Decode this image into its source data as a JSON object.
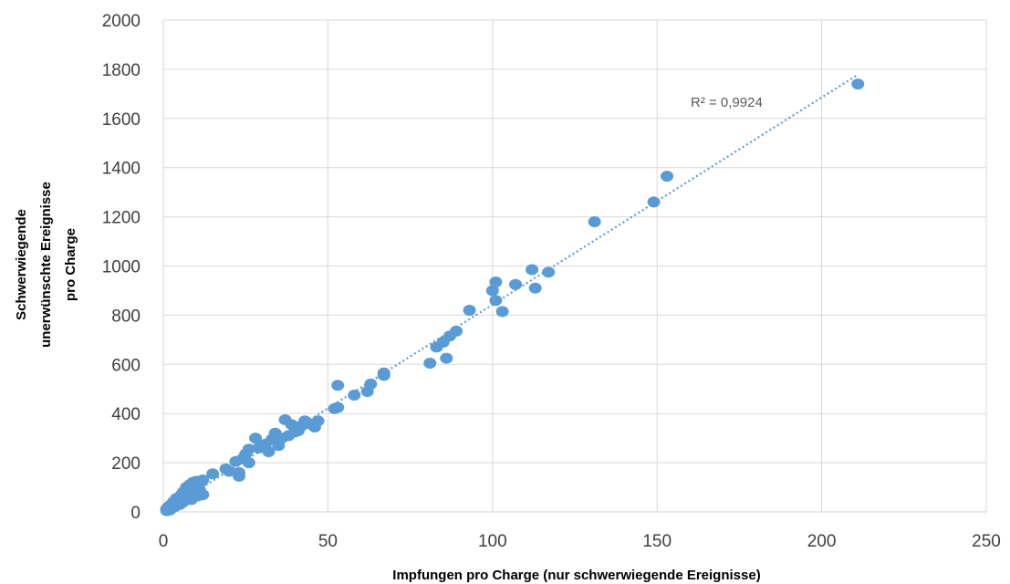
{
  "chart_data": {
    "type": "scatter",
    "title": "",
    "xlabel": "Impfungen pro Charge (nur schwerwiegende Ereignisse)",
    "ylabel_lines": [
      "Schwerwiegende",
      "unerwünschte Ereignisse",
      "pro Charge"
    ],
    "xlim": [
      0,
      250
    ],
    "ylim": [
      0,
      2000
    ],
    "x_ticks": [
      0,
      50,
      100,
      150,
      200,
      250
    ],
    "y_ticks": [
      0,
      200,
      400,
      600,
      800,
      1000,
      1200,
      1400,
      1600,
      1800,
      2000
    ],
    "grid": true,
    "marker_color": "#5B9BD5",
    "trendline": {
      "type": "linear",
      "style": "dotted",
      "x_range": [
        0,
        211
      ],
      "y_range": [
        0,
        1778
      ],
      "r2_label": "R² = 0,9924"
    },
    "points": [
      {
        "x": 1,
        "y": 5
      },
      {
        "x": 1,
        "y": 12
      },
      {
        "x": 1.5,
        "y": 20
      },
      {
        "x": 2,
        "y": 8
      },
      {
        "x": 2,
        "y": 25
      },
      {
        "x": 2.5,
        "y": 15
      },
      {
        "x": 3,
        "y": 30
      },
      {
        "x": 3,
        "y": 40
      },
      {
        "x": 3.5,
        "y": 22
      },
      {
        "x": 4,
        "y": 35
      },
      {
        "x": 4,
        "y": 55
      },
      {
        "x": 4.5,
        "y": 45
      },
      {
        "x": 5,
        "y": 30
      },
      {
        "x": 5,
        "y": 60
      },
      {
        "x": 5.5,
        "y": 70
      },
      {
        "x": 6,
        "y": 40
      },
      {
        "x": 6,
        "y": 80
      },
      {
        "x": 6.5,
        "y": 55
      },
      {
        "x": 7,
        "y": 60
      },
      {
        "x": 7,
        "y": 100
      },
      {
        "x": 7.5,
        "y": 85
      },
      {
        "x": 8,
        "y": 70
      },
      {
        "x": 8,
        "y": 110
      },
      {
        "x": 8.5,
        "y": 50
      },
      {
        "x": 9,
        "y": 90
      },
      {
        "x": 9,
        "y": 120
      },
      {
        "x": 9.5,
        "y": 75
      },
      {
        "x": 10,
        "y": 100
      },
      {
        "x": 10,
        "y": 125
      },
      {
        "x": 10.5,
        "y": 65
      },
      {
        "x": 11,
        "y": 90
      },
      {
        "x": 11,
        "y": 115
      },
      {
        "x": 12,
        "y": 70
      },
      {
        "x": 12,
        "y": 130
      },
      {
        "x": 15,
        "y": 155
      },
      {
        "x": 19,
        "y": 175
      },
      {
        "x": 20,
        "y": 165
      },
      {
        "x": 22,
        "y": 205
      },
      {
        "x": 23,
        "y": 160
      },
      {
        "x": 23,
        "y": 145
      },
      {
        "x": 24,
        "y": 215
      },
      {
        "x": 25,
        "y": 235
      },
      {
        "x": 26,
        "y": 255
      },
      {
        "x": 26,
        "y": 200
      },
      {
        "x": 28,
        "y": 300
      },
      {
        "x": 29,
        "y": 260
      },
      {
        "x": 31,
        "y": 275
      },
      {
        "x": 32,
        "y": 245
      },
      {
        "x": 33,
        "y": 295
      },
      {
        "x": 34,
        "y": 320
      },
      {
        "x": 35,
        "y": 270
      },
      {
        "x": 36,
        "y": 300
      },
      {
        "x": 37,
        "y": 375
      },
      {
        "x": 38,
        "y": 310
      },
      {
        "x": 39,
        "y": 355
      },
      {
        "x": 40,
        "y": 325
      },
      {
        "x": 41,
        "y": 330
      },
      {
        "x": 42,
        "y": 350
      },
      {
        "x": 43,
        "y": 370
      },
      {
        "x": 44,
        "y": 360
      },
      {
        "x": 46,
        "y": 345
      },
      {
        "x": 47,
        "y": 370
      },
      {
        "x": 52,
        "y": 420
      },
      {
        "x": 53,
        "y": 425
      },
      {
        "x": 53,
        "y": 515
      },
      {
        "x": 58,
        "y": 475
      },
      {
        "x": 62,
        "y": 490
      },
      {
        "x": 63,
        "y": 520
      },
      {
        "x": 67,
        "y": 555
      },
      {
        "x": 67,
        "y": 565
      },
      {
        "x": 81,
        "y": 605
      },
      {
        "x": 83,
        "y": 670
      },
      {
        "x": 85,
        "y": 690
      },
      {
        "x": 86,
        "y": 625
      },
      {
        "x": 87,
        "y": 715
      },
      {
        "x": 89,
        "y": 735
      },
      {
        "x": 93,
        "y": 820
      },
      {
        "x": 100,
        "y": 900
      },
      {
        "x": 101,
        "y": 935
      },
      {
        "x": 101,
        "y": 860
      },
      {
        "x": 103,
        "y": 815
      },
      {
        "x": 107,
        "y": 925
      },
      {
        "x": 112,
        "y": 985
      },
      {
        "x": 113,
        "y": 910
      },
      {
        "x": 117,
        "y": 975
      },
      {
        "x": 131,
        "y": 1180
      },
      {
        "x": 149,
        "y": 1260
      },
      {
        "x": 153,
        "y": 1365
      },
      {
        "x": 211,
        "y": 1740
      }
    ]
  }
}
